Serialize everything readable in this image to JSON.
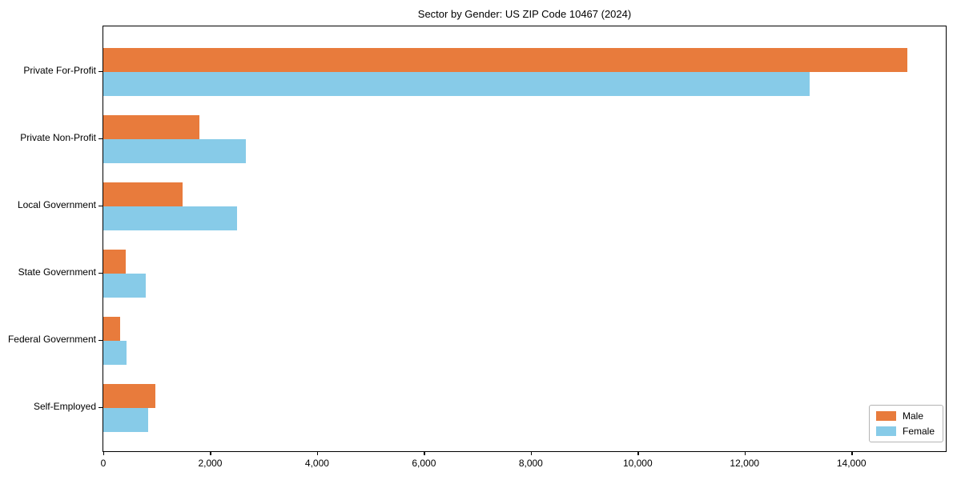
{
  "title": "Sector by Gender: US ZIP Code 10467 (2024)",
  "chart_data": {
    "type": "bar",
    "orientation": "horizontal",
    "title": "Sector by Gender: US ZIP Code 10467 (2024)",
    "xlabel": "",
    "ylabel": "",
    "categories": [
      "Private For-Profit",
      "Private Non-Profit",
      "Local Government",
      "State Government",
      "Federal Government",
      "Self-Employed"
    ],
    "series": [
      {
        "name": "Male",
        "color": "#e87b3c",
        "values": [
          15040,
          1800,
          1480,
          420,
          310,
          970
        ]
      },
      {
        "name": "Female",
        "color": "#87cbe8",
        "values": [
          13210,
          2670,
          2500,
          790,
          440,
          840
        ]
      }
    ],
    "xlim": [
      0,
      15750
    ],
    "xticks": [
      0,
      2000,
      4000,
      6000,
      8000,
      10000,
      12000,
      14000
    ],
    "xtick_labels": [
      "0",
      "2,000",
      "4,000",
      "6,000",
      "8,000",
      "10,000",
      "12,000",
      "14,000"
    ],
    "grid": false,
    "legend_position": "lower right"
  },
  "legend": {
    "items": [
      {
        "label": "Male",
        "color": "#e87b3c"
      },
      {
        "label": "Female",
        "color": "#87cbe8"
      }
    ]
  }
}
